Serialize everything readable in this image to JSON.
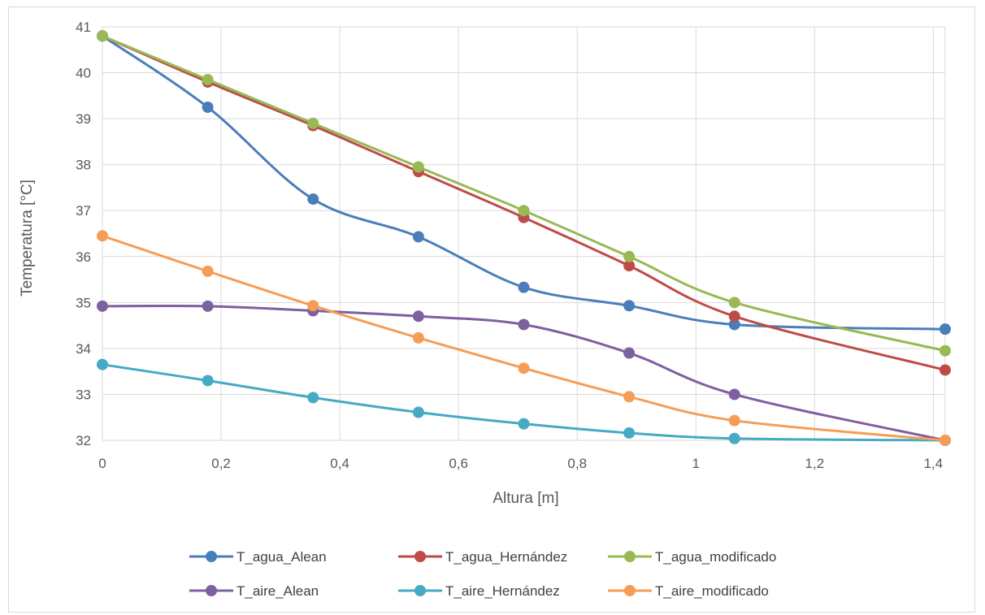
{
  "chart_data": {
    "type": "line",
    "title": "",
    "xlabel": "Altura [m]",
    "ylabel": "Temperatura [°C]",
    "xlim": [
      0,
      1.42
    ],
    "ylim": [
      32,
      41
    ],
    "x": [
      0,
      0.1775,
      0.355,
      0.5325,
      0.71,
      0.8875,
      1.065,
      1.42
    ],
    "x_ticks": [
      0,
      0.2,
      0.4,
      0.6,
      0.8,
      1,
      1.2,
      1.4
    ],
    "x_tick_labels": [
      "0",
      "0,2",
      "0,4",
      "0,6",
      "0,8",
      "1",
      "1,2",
      "1,4"
    ],
    "y_ticks": [
      32,
      33,
      34,
      35,
      36,
      37,
      38,
      39,
      40,
      41
    ],
    "y_tick_labels": [
      "32",
      "33",
      "34",
      "35",
      "36",
      "37",
      "38",
      "39",
      "40",
      "41"
    ],
    "grid": true,
    "legend_position": "bottom",
    "series": [
      {
        "name": "T_agua_Alean",
        "color": "#4a7ebb",
        "values": [
          40.8,
          39.25,
          37.25,
          36.43,
          35.33,
          34.93,
          34.52,
          34.42
        ]
      },
      {
        "name": "T_agua_Hernández",
        "color": "#be4b48",
        "values": [
          40.8,
          39.8,
          38.85,
          37.85,
          36.85,
          35.8,
          34.7,
          33.53
        ]
      },
      {
        "name": "T_agua_modificado",
        "color": "#98b954",
        "values": [
          40.8,
          39.85,
          38.9,
          37.95,
          37.0,
          36.0,
          35.0,
          33.95
        ]
      },
      {
        "name": "T_aire_Alean",
        "color": "#7d60a0",
        "values": [
          34.92,
          34.92,
          34.82,
          34.7,
          34.52,
          33.9,
          33.0,
          32.0
        ]
      },
      {
        "name": "T_aire_Hernández",
        "color": "#46aac4",
        "values": [
          33.65,
          33.3,
          32.93,
          32.61,
          32.36,
          32.16,
          32.04,
          32.0
        ]
      },
      {
        "name": "T_aire_modificado",
        "color": "#f59d56",
        "values": [
          36.45,
          35.68,
          34.93,
          34.23,
          33.57,
          32.95,
          32.43,
          32.0
        ]
      }
    ]
  }
}
